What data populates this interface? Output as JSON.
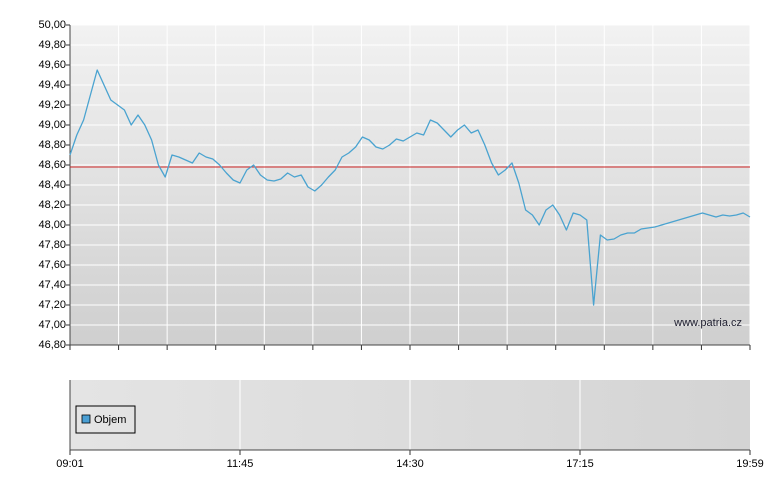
{
  "chart_data": {
    "type": "line",
    "color": "#4aa3d0",
    "ylim": [
      46.8,
      50.0
    ],
    "yticks": [
      {
        "value": 46.8,
        "label": "46,80"
      },
      {
        "value": 47.0,
        "label": "47,00"
      },
      {
        "value": 47.2,
        "label": "47,20"
      },
      {
        "value": 47.4,
        "label": "47,40"
      },
      {
        "value": 47.6,
        "label": "47,60"
      },
      {
        "value": 47.8,
        "label": "47,80"
      },
      {
        "value": 48.0,
        "label": "48,00"
      },
      {
        "value": 48.2,
        "label": "48,20"
      },
      {
        "value": 48.4,
        "label": "48,40"
      },
      {
        "value": 48.6,
        "label": "48,60"
      },
      {
        "value": 48.8,
        "label": "48,80"
      },
      {
        "value": 49.0,
        "label": "49,00"
      },
      {
        "value": 49.2,
        "label": "49,20"
      },
      {
        "value": 49.4,
        "label": "49,40"
      },
      {
        "value": 49.6,
        "label": "49,60"
      },
      {
        "value": 49.8,
        "label": "49,80"
      },
      {
        "value": 50.0,
        "label": "50,00"
      }
    ],
    "grid": true,
    "reference_line": {
      "value": 48.58,
      "color": "#cc2222"
    },
    "source": "www.patria.cz",
    "volume_legend": "Objem",
    "volume_color": "#4a9fd4",
    "categories": [
      "09:01",
      null,
      null,
      null,
      null,
      null,
      null,
      null,
      null,
      null,
      null,
      null,
      null,
      null,
      null,
      null,
      null,
      null,
      null,
      null,
      null,
      null,
      null,
      null,
      null,
      "11:45",
      null,
      null,
      null,
      null,
      null,
      null,
      null,
      null,
      null,
      null,
      null,
      null,
      null,
      null,
      null,
      null,
      null,
      null,
      null,
      null,
      null,
      null,
      null,
      null,
      "14:30",
      null,
      null,
      null,
      null,
      null,
      null,
      null,
      null,
      null,
      null,
      null,
      null,
      null,
      null,
      null,
      null,
      null,
      null,
      null,
      null,
      null,
      null,
      null,
      null,
      "17:15",
      null,
      null,
      null,
      null,
      null,
      null,
      null,
      null,
      null,
      null,
      null,
      null,
      null,
      null,
      null,
      null,
      null,
      null,
      null,
      null,
      null,
      null,
      null,
      null,
      "19:59"
    ],
    "values": [
      48.7,
      48.9,
      49.05,
      49.3,
      49.55,
      49.4,
      49.25,
      49.2,
      49.15,
      49.0,
      49.1,
      49.0,
      48.85,
      48.6,
      48.48,
      48.7,
      48.68,
      48.65,
      48.62,
      48.72,
      48.68,
      48.66,
      48.6,
      48.52,
      48.45,
      48.42,
      48.55,
      48.6,
      48.5,
      48.45,
      48.44,
      48.46,
      48.52,
      48.48,
      48.5,
      48.38,
      48.34,
      48.4,
      48.48,
      48.55,
      48.68,
      48.72,
      48.78,
      48.88,
      48.85,
      48.78,
      48.76,
      48.8,
      48.86,
      48.84,
      48.88,
      48.92,
      48.9,
      49.05,
      49.02,
      48.95,
      48.88,
      48.95,
      49.0,
      48.92,
      48.95,
      48.8,
      48.62,
      48.5,
      48.55,
      48.62,
      48.42,
      48.15,
      48.1,
      48.0,
      48.15,
      48.2,
      48.1,
      47.95,
      48.12,
      48.1,
      48.05,
      47.2,
      47.9,
      47.85,
      47.86,
      47.9,
      47.92,
      47.92,
      47.96,
      47.97,
      47.98,
      48.0,
      48.02,
      48.04,
      48.06,
      48.08,
      48.1,
      48.12,
      48.1,
      48.08,
      48.1,
      48.09,
      48.1,
      48.12,
      48.08
    ]
  }
}
